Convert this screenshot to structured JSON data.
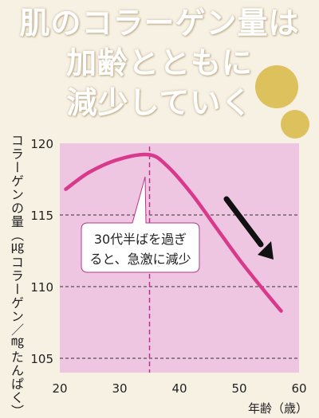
{
  "title_lines": [
    "肌のコラーゲン量は",
    "加齢とともに",
    "減少していく"
  ],
  "colors": {
    "background": "#f7f1e4",
    "plot_area": "#efc6e2",
    "line": "#d8398c",
    "dashed_marker": "#b8348a",
    "decor_dot": "#ddc15d",
    "arrow": "#111111"
  },
  "chart_data": {
    "type": "line",
    "title": "",
    "ylabel": "コラーゲンの量（㎍コラーゲン／㎎たんぱく）",
    "xlabel": "年齢（歳）",
    "xlim": [
      20,
      60
    ],
    "ylim": [
      104,
      120
    ],
    "xticks": [
      20,
      30,
      40,
      50,
      60
    ],
    "yticks": [
      105,
      110,
      115,
      120
    ],
    "grid": "horizontal dashed",
    "series": [
      {
        "x": [
          21,
          25,
          30,
          35,
          38,
          42,
          46,
          50,
          54,
          57
        ],
        "y": [
          116.8,
          118.0,
          118.9,
          119.2,
          118.4,
          116.5,
          114.2,
          111.9,
          109.8,
          108.3
        ]
      }
    ],
    "marker_x": 35,
    "annotation": {
      "lines": [
        "30代半ばを過ぎ",
        "ると、急激に減少"
      ]
    }
  }
}
